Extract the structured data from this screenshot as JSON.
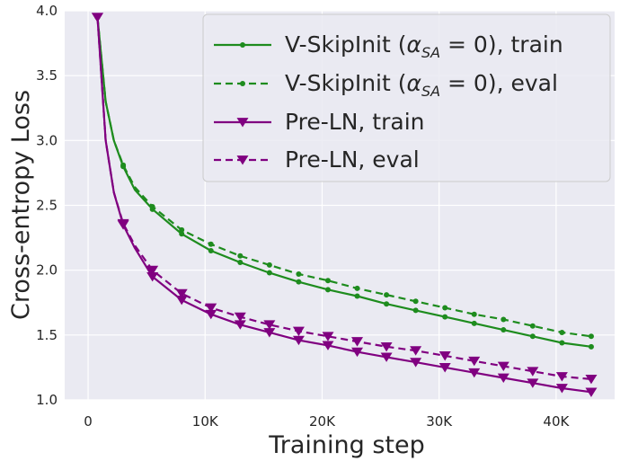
{
  "chart_data": {
    "type": "line",
    "xlabel": "Training step",
    "ylabel": "Cross-entropy Loss",
    "xlim": [
      -2000,
      45000
    ],
    "ylim": [
      1.0,
      4.0
    ],
    "x_ticks": [
      0,
      10000,
      20000,
      30000,
      40000
    ],
    "x_tick_labels": [
      "0",
      "10K",
      "20K",
      "30K",
      "40K"
    ],
    "y_ticks": [
      1.0,
      1.5,
      2.0,
      2.5,
      3.0,
      3.5,
      4.0
    ],
    "y_tick_labels": [
      "1.0",
      "1.5",
      "2.0",
      "2.5",
      "3.0",
      "3.5",
      "4.0"
    ],
    "grid": true,
    "legend_position": "top-right",
    "colors": {
      "green": "#1e8c1e",
      "purple": "#800080",
      "background": "#eaeaf2",
      "grid": "#ffffff"
    },
    "series": [
      {
        "name_prefix": "V-SkipInit (",
        "name_math": "α",
        "name_sub": "SA",
        "name_suffix": " = 0), train",
        "color": "#1e8c1e",
        "dash": "solid",
        "marker": "dot",
        "x": [
          800,
          1500,
          2200,
          3000,
          4000,
          5500,
          8000,
          10500,
          13000,
          15500,
          18000,
          20500,
          23000,
          25500,
          28000,
          30500,
          33000,
          35500,
          38000,
          40500,
          43000
        ],
        "y": [
          3.95,
          3.3,
          3.0,
          2.8,
          2.62,
          2.47,
          2.28,
          2.15,
          2.06,
          1.98,
          1.91,
          1.85,
          1.8,
          1.74,
          1.69,
          1.64,
          1.59,
          1.54,
          1.49,
          1.44,
          1.41
        ]
      },
      {
        "name_prefix": "V-SkipInit (",
        "name_math": "α",
        "name_sub": "SA",
        "name_suffix": " = 0), eval",
        "color": "#1e8c1e",
        "dash": "dashed",
        "marker": "dot",
        "x": [
          800,
          1500,
          2200,
          3000,
          4000,
          5500,
          8000,
          10500,
          13000,
          15500,
          18000,
          20500,
          23000,
          25500,
          28000,
          30500,
          33000,
          35500,
          38000,
          40500,
          43000
        ],
        "y": [
          3.95,
          3.3,
          3.0,
          2.81,
          2.64,
          2.49,
          2.31,
          2.2,
          2.11,
          2.04,
          1.97,
          1.92,
          1.86,
          1.81,
          1.76,
          1.71,
          1.66,
          1.62,
          1.57,
          1.52,
          1.49
        ]
      },
      {
        "name": "Pre-LN, train",
        "color": "#800080",
        "dash": "solid",
        "marker": "triangle-down",
        "x": [
          800,
          1500,
          2200,
          3000,
          4000,
          5500,
          8000,
          10500,
          13000,
          15500,
          18000,
          20500,
          23000,
          25500,
          28000,
          30500,
          33000,
          35500,
          38000,
          40500,
          43000
        ],
        "y": [
          3.95,
          3.0,
          2.6,
          2.35,
          2.17,
          1.95,
          1.77,
          1.66,
          1.58,
          1.52,
          1.46,
          1.42,
          1.37,
          1.33,
          1.29,
          1.25,
          1.21,
          1.17,
          1.13,
          1.09,
          1.06
        ]
      },
      {
        "name": "Pre-LN, eval",
        "color": "#800080",
        "dash": "dashed",
        "marker": "triangle-down",
        "x": [
          800,
          1500,
          2200,
          3000,
          4000,
          5500,
          8000,
          10500,
          13000,
          15500,
          18000,
          20500,
          23000,
          25500,
          28000,
          30500,
          33000,
          35500,
          38000,
          40500,
          43000
        ],
        "y": [
          3.95,
          3.0,
          2.6,
          2.36,
          2.19,
          2.0,
          1.82,
          1.71,
          1.64,
          1.58,
          1.53,
          1.49,
          1.45,
          1.41,
          1.38,
          1.34,
          1.3,
          1.26,
          1.22,
          1.18,
          1.16
        ]
      }
    ],
    "marker_x": [
      800,
      3000,
      5500,
      8000,
      10500,
      13000,
      15500,
      18000,
      20500,
      23000,
      25500,
      28000,
      30500,
      33000,
      35500,
      38000,
      40500,
      43000
    ]
  }
}
